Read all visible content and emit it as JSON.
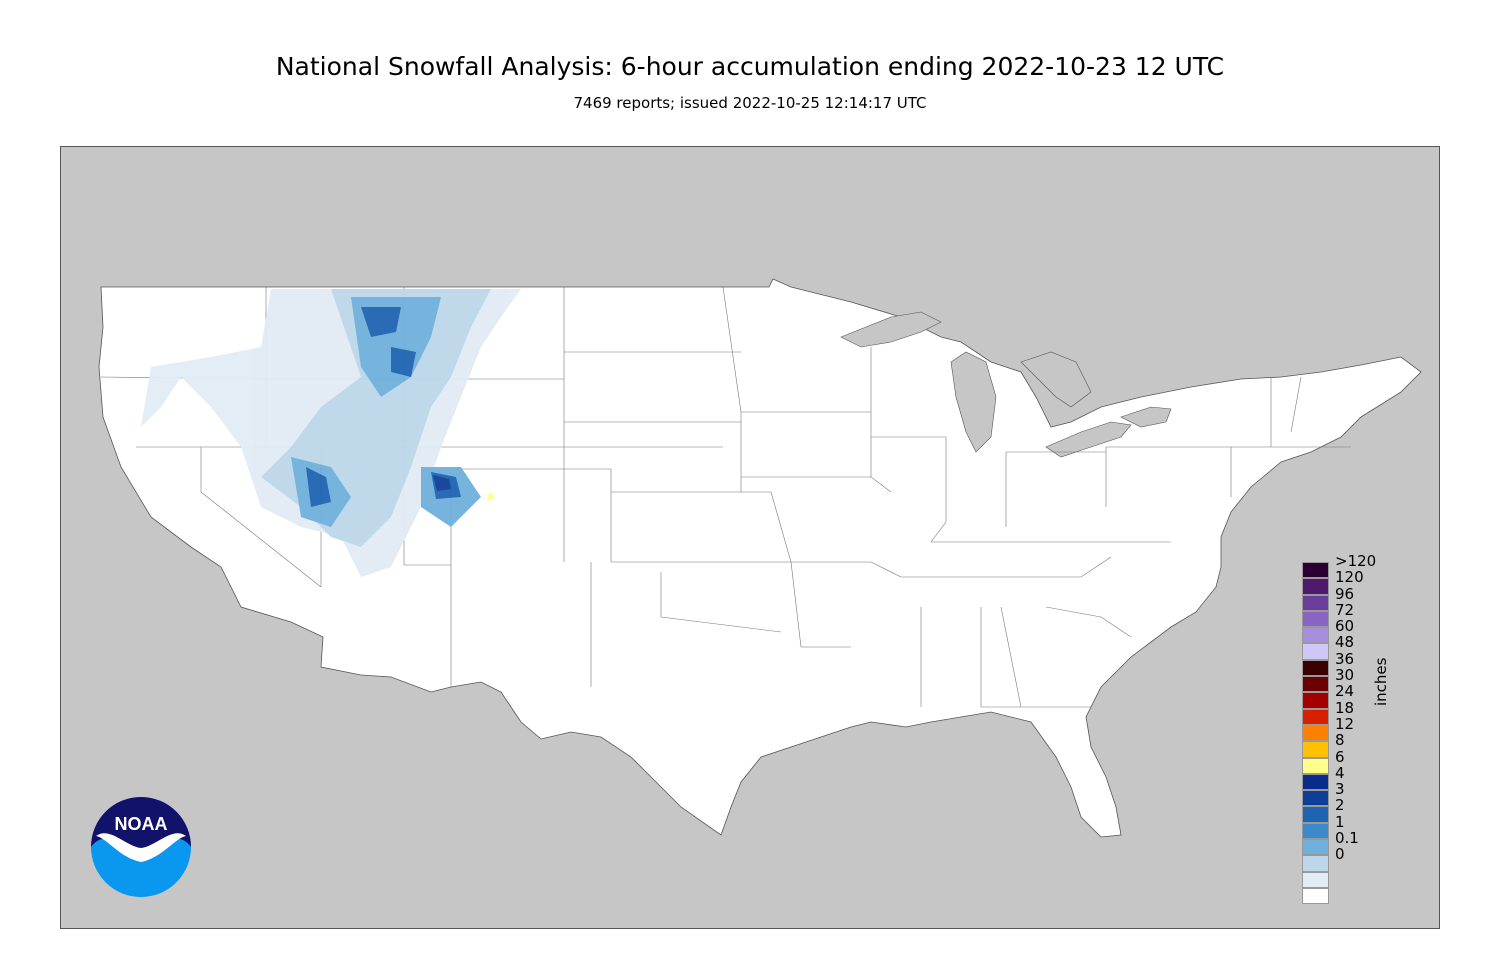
{
  "header": {
    "title": "National Snowfall Analysis: 6-hour accumulation ending 2022-10-23 12 UTC",
    "subtitle": "7469 reports; issued 2022-10-25 12:14:17 UTC"
  },
  "colors": {
    "background_land_outside": "#c6c6c6",
    "conus_fill": "#ffffff",
    "boundary_line": "#555555"
  },
  "legend": {
    "units": "inches",
    "levels": [
      {
        "label": ">120",
        "color": "#2b0033"
      },
      {
        "label": "120",
        "color": "#4f1a6e"
      },
      {
        "label": "96",
        "color": "#6a3d9a"
      },
      {
        "label": "72",
        "color": "#8a64c2"
      },
      {
        "label": "60",
        "color": "#a88fde"
      },
      {
        "label": "48",
        "color": "#cfc8f7"
      },
      {
        "label": "36",
        "color": "#3b0000"
      },
      {
        "label": "30",
        "color": "#6b0000"
      },
      {
        "label": "24",
        "color": "#a50000"
      },
      {
        "label": "18",
        "color": "#d62000"
      },
      {
        "label": "12",
        "color": "#ff7f00"
      },
      {
        "label": "8",
        "color": "#ffc000"
      },
      {
        "label": "6",
        "color": "#ffff8a"
      },
      {
        "label": "4",
        "color": "#082b8c"
      },
      {
        "label": "3",
        "color": "#0d3f99"
      },
      {
        "label": "2",
        "color": "#1e64b0"
      },
      {
        "label": "1",
        "color": "#3c8ac9"
      },
      {
        "label": "0.1",
        "color": "#6fb0dd"
      },
      {
        "label": "0",
        "color": "#bcd7ea"
      },
      {
        "label": "",
        "color": "#e2ecf5"
      },
      {
        "label": "",
        "color": "#ffffff"
      }
    ]
  },
  "logo": {
    "text": "NOAA",
    "icon": "noaa-logo-icon"
  }
}
